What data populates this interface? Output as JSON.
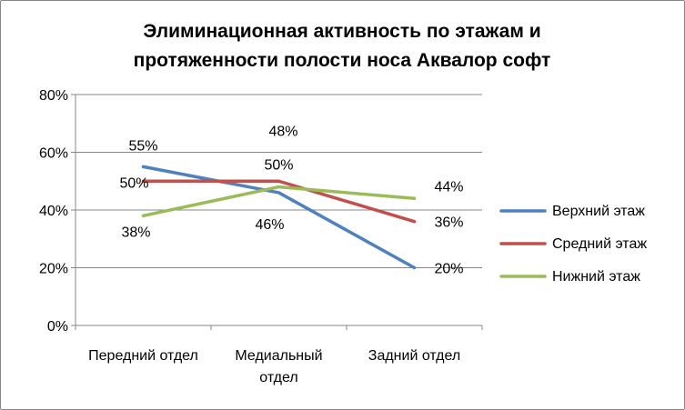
{
  "chart_data": {
    "type": "line",
    "title_lines": [
      "Элиминационная активность по этажам и",
      "протяженности полости носа Аквалор софт"
    ],
    "categories": [
      [
        "Передний отдел"
      ],
      [
        "Медиальный",
        "отдел"
      ],
      [
        "Задний отдел"
      ]
    ],
    "y_ticks": [
      "0%",
      "20%",
      "40%",
      "60%",
      "80%"
    ],
    "ylim": [
      0,
      80
    ],
    "grid": true,
    "legend_position": "right",
    "series": [
      {
        "name": "Верхний этаж",
        "color": "#4F81BD",
        "values": [
          55,
          46,
          20
        ],
        "labels": [
          "55%",
          "46%",
          "20%"
        ]
      },
      {
        "name": "Средний этаж",
        "color": "#C0504D",
        "values": [
          50,
          50,
          36
        ],
        "labels": [
          "50%",
          "50%",
          "36%"
        ]
      },
      {
        "name": "Нижний этаж",
        "color": "#9BBB59",
        "values": [
          38,
          48,
          44
        ],
        "labels": [
          "38%",
          "48%",
          "44%"
        ]
      }
    ]
  }
}
